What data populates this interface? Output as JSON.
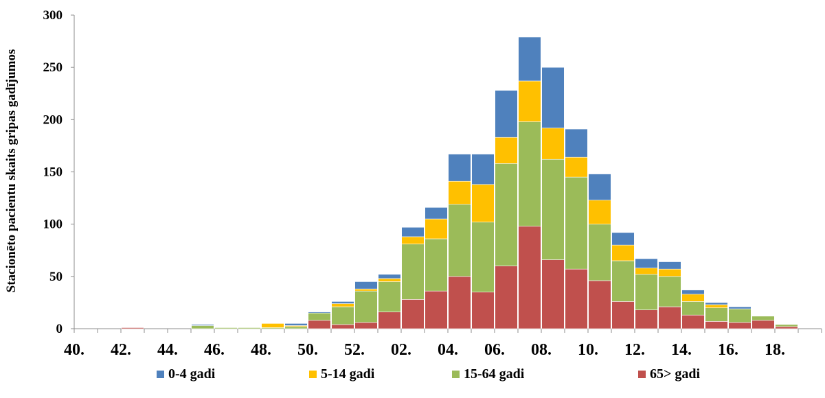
{
  "chart_data": {
    "type": "bar",
    "stacked": true,
    "ylabel": "Stacionēto pacientu skaits gripas gadījumos",
    "xlabel": "",
    "ylim": [
      0,
      300
    ],
    "yticks": [
      0,
      50,
      100,
      150,
      200,
      250,
      300
    ],
    "categories": [
      "40.",
      "41.",
      "42.",
      "43.",
      "44.",
      "45.",
      "46.",
      "47.",
      "48.",
      "49.",
      "50.",
      "51.",
      "52.",
      "01.",
      "02.",
      "03.",
      "04.",
      "05.",
      "06.",
      "07.",
      "08.",
      "09.",
      "10.",
      "11.",
      "12.",
      "13.",
      "14.",
      "15.",
      "16.",
      "17.",
      "18.",
      "19."
    ],
    "xtick_labels": [
      "40.",
      "42.",
      "44.",
      "46.",
      "48.",
      "50.",
      "52.",
      "02.",
      "04.",
      "06.",
      "08.",
      "10.",
      "12.",
      "14.",
      "16.",
      "18."
    ],
    "series": [
      {
        "name": "65> gadi",
        "color": "#c0504d",
        "values": [
          0,
          0,
          1,
          0,
          0,
          0,
          0,
          0,
          0,
          0,
          8,
          4,
          6,
          16,
          28,
          36,
          50,
          35,
          60,
          98,
          66,
          57,
          46,
          26,
          18,
          21,
          13,
          7,
          6,
          8,
          2,
          0
        ]
      },
      {
        "name": "15-64 gadi",
        "color": "#9bbb59",
        "values": [
          0,
          0,
          0,
          0,
          0,
          3,
          1,
          1,
          1,
          2,
          7,
          17,
          30,
          29,
          53,
          50,
          69,
          67,
          98,
          100,
          96,
          88,
          54,
          39,
          34,
          29,
          13,
          13,
          13,
          4,
          2,
          0
        ]
      },
      {
        "name": "5-14 gadi",
        "color": "#ffc000",
        "values": [
          0,
          0,
          0,
          0,
          0,
          0,
          0,
          0,
          4,
          1,
          0,
          3,
          2,
          3,
          7,
          19,
          22,
          36,
          25,
          39,
          30,
          19,
          23,
          15,
          6,
          7,
          7,
          3,
          0,
          0,
          0,
          0
        ]
      },
      {
        "name": "0-4 gadi",
        "color": "#4f81bd",
        "values": [
          0,
          0,
          0,
          0,
          0,
          1,
          0,
          0,
          0,
          2,
          1,
          2,
          7,
          4,
          9,
          11,
          26,
          29,
          45,
          42,
          58,
          27,
          25,
          12,
          9,
          7,
          4,
          2,
          2,
          0,
          0,
          0
        ]
      }
    ],
    "legend_order": [
      "0-4 gadi",
      "5-14 gadi",
      "15-64 gadi",
      "65> gadi"
    ],
    "legend_position": "bottom",
    "grid": false
  }
}
